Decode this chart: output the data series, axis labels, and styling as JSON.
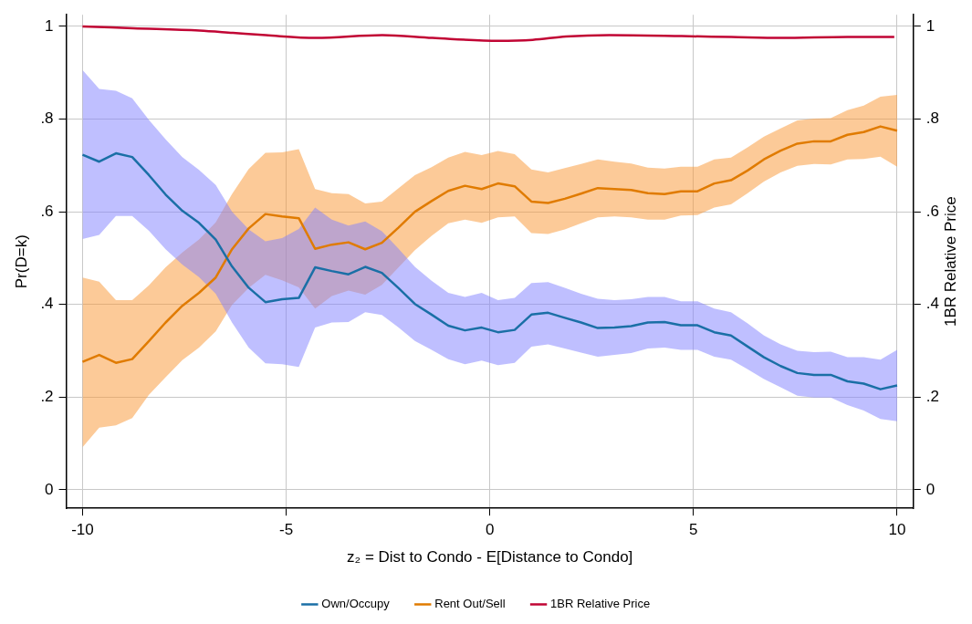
{
  "chart_data": {
    "type": "line",
    "xlabel": "z₂ = Dist to Condo - E[Distance to Condo]",
    "ylabel": "Pr(D=k)",
    "y2label": "1BR Relative Price",
    "x": [
      -10,
      -9.59,
      -9.18,
      -8.78,
      -8.37,
      -7.96,
      -7.55,
      -7.14,
      -6.73,
      -6.33,
      -5.92,
      -5.51,
      -5.1,
      -4.69,
      -4.29,
      -3.88,
      -3.47,
      -3.06,
      -2.65,
      -2.24,
      -1.84,
      -1.43,
      -1.02,
      -0.61,
      -0.2,
      0.2,
      0.61,
      1.02,
      1.43,
      1.84,
      2.24,
      2.65,
      3.06,
      3.47,
      3.88,
      4.29,
      4.69,
      5.1,
      5.51,
      5.92,
      6.33,
      6.73,
      7.14,
      7.55,
      7.96,
      8.37,
      8.78,
      9.18,
      9.59,
      10
    ],
    "series": [
      {
        "name": "Own/Occupy",
        "color": "#1a6fa6",
        "values": [
          0.723,
          0.708,
          0.726,
          0.718,
          0.679,
          0.637,
          0.602,
          0.576,
          0.54,
          0.482,
          0.436,
          0.405,
          0.411,
          0.414,
          0.48,
          0.472,
          0.465,
          0.481,
          0.468,
          0.435,
          0.401,
          0.378,
          0.354,
          0.344,
          0.35,
          0.34,
          0.345,
          0.378,
          0.382,
          0.371,
          0.361,
          0.349,
          0.35,
          0.353,
          0.361,
          0.362,
          0.355,
          0.355,
          0.34,
          0.333,
          0.309,
          0.286,
          0.267,
          0.252,
          0.248,
          0.248,
          0.234,
          0.229,
          0.217,
          0.225
        ],
        "lower": [
          0.541,
          0.55,
          0.591,
          0.591,
          0.559,
          0.519,
          0.486,
          0.459,
          0.423,
          0.361,
          0.307,
          0.273,
          0.271,
          0.265,
          0.35,
          0.361,
          0.362,
          0.383,
          0.377,
          0.35,
          0.321,
          0.302,
          0.282,
          0.271,
          0.279,
          0.269,
          0.274,
          0.309,
          0.314,
          0.305,
          0.296,
          0.287,
          0.291,
          0.295,
          0.305,
          0.307,
          0.302,
          0.302,
          0.287,
          0.281,
          0.26,
          0.239,
          0.221,
          0.203,
          0.199,
          0.199,
          0.183,
          0.171,
          0.153,
          0.148
        ],
        "upper": [
          0.906,
          0.865,
          0.861,
          0.845,
          0.798,
          0.756,
          0.718,
          0.69,
          0.658,
          0.6,
          0.562,
          0.536,
          0.543,
          0.563,
          0.609,
          0.583,
          0.57,
          0.579,
          0.558,
          0.52,
          0.481,
          0.451,
          0.425,
          0.416,
          0.425,
          0.409,
          0.414,
          0.446,
          0.448,
          0.436,
          0.423,
          0.412,
          0.409,
          0.411,
          0.416,
          0.416,
          0.407,
          0.407,
          0.391,
          0.383,
          0.359,
          0.333,
          0.314,
          0.3,
          0.297,
          0.298,
          0.286,
          0.286,
          0.281,
          0.302
        ]
      },
      {
        "name": "Rent Out/Sell",
        "color": "#e07b00",
        "values": [
          0.276,
          0.291,
          0.274,
          0.282,
          0.321,
          0.361,
          0.397,
          0.425,
          0.458,
          0.519,
          0.564,
          0.595,
          0.59,
          0.586,
          0.52,
          0.529,
          0.534,
          0.519,
          0.533,
          0.566,
          0.6,
          0.623,
          0.645,
          0.656,
          0.649,
          0.661,
          0.655,
          0.622,
          0.619,
          0.628,
          0.639,
          0.651,
          0.649,
          0.647,
          0.64,
          0.638,
          0.644,
          0.644,
          0.661,
          0.668,
          0.689,
          0.713,
          0.732,
          0.747,
          0.752,
          0.752,
          0.766,
          0.772,
          0.784,
          0.775
        ],
        "lower": [
          0.092,
          0.134,
          0.139,
          0.155,
          0.205,
          0.243,
          0.28,
          0.307,
          0.342,
          0.399,
          0.436,
          0.464,
          0.452,
          0.437,
          0.391,
          0.418,
          0.43,
          0.421,
          0.442,
          0.48,
          0.517,
          0.548,
          0.575,
          0.583,
          0.576,
          0.588,
          0.59,
          0.554,
          0.552,
          0.562,
          0.575,
          0.588,
          0.59,
          0.588,
          0.583,
          0.583,
          0.592,
          0.593,
          0.609,
          0.616,
          0.64,
          0.665,
          0.685,
          0.699,
          0.703,
          0.702,
          0.713,
          0.714,
          0.719,
          0.697
        ],
        "upper": [
          0.458,
          0.449,
          0.409,
          0.409,
          0.441,
          0.48,
          0.512,
          0.54,
          0.577,
          0.638,
          0.692,
          0.727,
          0.728,
          0.735,
          0.649,
          0.64,
          0.638,
          0.618,
          0.622,
          0.651,
          0.679,
          0.696,
          0.717,
          0.729,
          0.722,
          0.731,
          0.724,
          0.691,
          0.685,
          0.694,
          0.703,
          0.713,
          0.708,
          0.704,
          0.695,
          0.693,
          0.697,
          0.697,
          0.713,
          0.717,
          0.739,
          0.762,
          0.78,
          0.797,
          0.801,
          0.802,
          0.819,
          0.829,
          0.848,
          0.852
        ]
      },
      {
        "name": "1BR Relative Price",
        "color": "#c10534",
        "axis": "y2",
        "x": [
          -10,
          -8.76,
          -7.13,
          -6.31,
          -5.5,
          -4.27,
          -2.64,
          -1.41,
          0.22,
          1.05,
          1.87,
          2.93,
          4.71,
          5.93,
          7.15,
          8.78,
          9.93
        ],
        "values": [
          1.0,
          0.996,
          0.991,
          0.986,
          0.981,
          0.975,
          0.981,
          0.975,
          0.969,
          0.971,
          0.978,
          0.981,
          0.979,
          0.977,
          0.975,
          0.977,
          0.977
        ]
      }
    ],
    "xlim": [
      -10.4,
      10.4
    ],
    "xticks": [
      -10,
      -5,
      0,
      5,
      10
    ],
    "ylim": [
      -0.04,
      1.025
    ],
    "yticks": [
      0,
      {
        "value": 0.2,
        "label": ".2"
      },
      {
        "value": 0.4,
        "label": ".4"
      },
      {
        "value": 0.6,
        "label": ".6"
      },
      {
        "value": 0.8,
        "label": ".8"
      },
      1
    ],
    "y2lim": [
      -0.04,
      1.025
    ],
    "y2ticks": [
      0,
      {
        "value": 0.2,
        "label": ".2"
      },
      {
        "value": 0.4,
        "label": ".4"
      },
      {
        "value": 0.6,
        "label": ".6"
      },
      {
        "value": 0.8,
        "label": ".8"
      },
      1
    ],
    "grid": true,
    "legend": "bottom"
  }
}
